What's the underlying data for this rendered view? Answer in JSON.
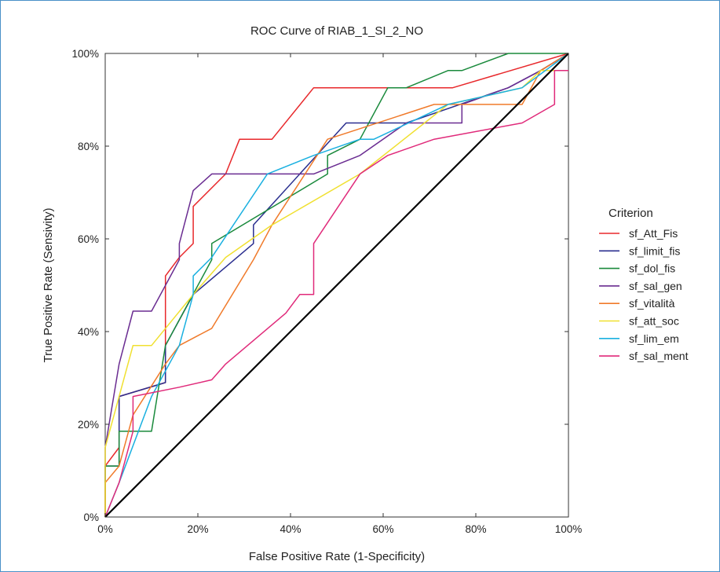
{
  "chart_data": {
    "type": "line",
    "title": "ROC Curve of RIAB_1_SI_2_NO",
    "xlabel": "False Positive Rate (1-Specificity)",
    "ylabel": "True Positive Rate (Sensivity)",
    "xlim": [
      0,
      100
    ],
    "ylim": [
      0,
      100
    ],
    "x_ticks": [
      "0%",
      "20%",
      "40%",
      "60%",
      "80%",
      "100%"
    ],
    "y_ticks": [
      "0%",
      "20%",
      "40%",
      "60%",
      "80%",
      "100%"
    ],
    "grid": false,
    "legend": {
      "title": "Criterion",
      "placement": "right"
    },
    "reference_line": {
      "points": [
        [
          0,
          0
        ],
        [
          100,
          100
        ]
      ],
      "color": "#000000"
    },
    "series": [
      {
        "name": "sf_Att_Fis",
        "color": "#e8282b",
        "points": [
          [
            0,
            0
          ],
          [
            0,
            11
          ],
          [
            3,
            15
          ],
          [
            3,
            26
          ],
          [
            13,
            29
          ],
          [
            13,
            52
          ],
          [
            16,
            56
          ],
          [
            19,
            59
          ],
          [
            19,
            67
          ],
          [
            26,
            74
          ],
          [
            29,
            81.5
          ],
          [
            36,
            81.5
          ],
          [
            45,
            92.6
          ],
          [
            75,
            92.6
          ],
          [
            100,
            100
          ]
        ]
      },
      {
        "name": "sf_limit_fis",
        "color": "#2b2f8f",
        "points": [
          [
            0,
            0
          ],
          [
            0,
            11
          ],
          [
            3,
            11
          ],
          [
            3,
            26
          ],
          [
            13,
            29
          ],
          [
            13,
            37
          ],
          [
            19,
            48
          ],
          [
            32,
            59
          ],
          [
            32,
            63
          ],
          [
            52,
            85
          ],
          [
            65,
            85
          ],
          [
            87,
            92.6
          ],
          [
            94,
            96.3
          ],
          [
            100,
            100
          ]
        ]
      },
      {
        "name": "sf_dol_fis",
        "color": "#1a8a3c",
        "points": [
          [
            0,
            0
          ],
          [
            0,
            11
          ],
          [
            3,
            11
          ],
          [
            3,
            18.5
          ],
          [
            10,
            18.5
          ],
          [
            13,
            37
          ],
          [
            23,
            55.5
          ],
          [
            23,
            59
          ],
          [
            48,
            74
          ],
          [
            48,
            78
          ],
          [
            55,
            81.5
          ],
          [
            61,
            92.6
          ],
          [
            65,
            92.6
          ],
          [
            74,
            96.3
          ],
          [
            77,
            96.3
          ],
          [
            87,
            100
          ],
          [
            100,
            100
          ]
        ]
      },
      {
        "name": "sf_sal_gen",
        "color": "#6a2c91",
        "points": [
          [
            0,
            0
          ],
          [
            0,
            15
          ],
          [
            3,
            33
          ],
          [
            6,
            44.4
          ],
          [
            10,
            44.4
          ],
          [
            16,
            55.5
          ],
          [
            16,
            59
          ],
          [
            19,
            70.4
          ],
          [
            23,
            74
          ],
          [
            45,
            74
          ],
          [
            55,
            78
          ],
          [
            65,
            85
          ],
          [
            77,
            85
          ],
          [
            77,
            89
          ],
          [
            87,
            92.6
          ],
          [
            94,
            96.3
          ],
          [
            100,
            100
          ]
        ]
      },
      {
        "name": "sf_vitalità",
        "color": "#f07a2a",
        "points": [
          [
            0,
            0
          ],
          [
            0,
            7.4
          ],
          [
            3,
            11
          ],
          [
            6,
            22
          ],
          [
            13,
            33
          ],
          [
            16,
            37
          ],
          [
            23,
            40.7
          ],
          [
            32,
            55.5
          ],
          [
            36,
            63
          ],
          [
            48,
            81.5
          ],
          [
            71,
            89
          ],
          [
            90,
            89
          ],
          [
            94,
            96.3
          ],
          [
            100,
            100
          ]
        ]
      },
      {
        "name": "sf_att_soc",
        "color": "#f0e030",
        "points": [
          [
            0,
            0
          ],
          [
            0,
            15
          ],
          [
            3,
            26
          ],
          [
            6,
            37
          ],
          [
            10,
            37
          ],
          [
            19,
            48
          ],
          [
            26,
            56
          ],
          [
            36,
            63
          ],
          [
            55,
            74
          ],
          [
            74,
            89
          ],
          [
            90,
            92.6
          ],
          [
            94,
            96.3
          ],
          [
            100,
            96.3
          ]
        ]
      },
      {
        "name": "sf_lim_em",
        "color": "#1ab0e0",
        "points": [
          [
            0,
            0
          ],
          [
            3,
            7.4
          ],
          [
            10,
            26
          ],
          [
            16,
            37
          ],
          [
            19,
            48
          ],
          [
            19,
            52
          ],
          [
            23,
            56
          ],
          [
            35,
            74
          ],
          [
            45,
            78
          ],
          [
            55,
            81.5
          ],
          [
            58,
            81.5
          ],
          [
            74,
            89
          ],
          [
            90,
            92.6
          ],
          [
            100,
            100
          ]
        ]
      },
      {
        "name": "sf_sal_ment",
        "color": "#e02a7a",
        "points": [
          [
            0,
            0
          ],
          [
            3,
            7.4
          ],
          [
            6,
            18.5
          ],
          [
            6,
            26
          ],
          [
            16,
            28
          ],
          [
            23,
            29.6
          ],
          [
            26,
            33
          ],
          [
            39,
            44
          ],
          [
            42,
            48
          ],
          [
            45,
            48
          ],
          [
            45,
            59
          ],
          [
            55,
            74
          ],
          [
            61,
            78
          ],
          [
            71,
            81.5
          ],
          [
            90,
            85
          ],
          [
            97,
            89
          ],
          [
            97,
            96.3
          ],
          [
            100,
            96.3
          ]
        ]
      }
    ]
  }
}
